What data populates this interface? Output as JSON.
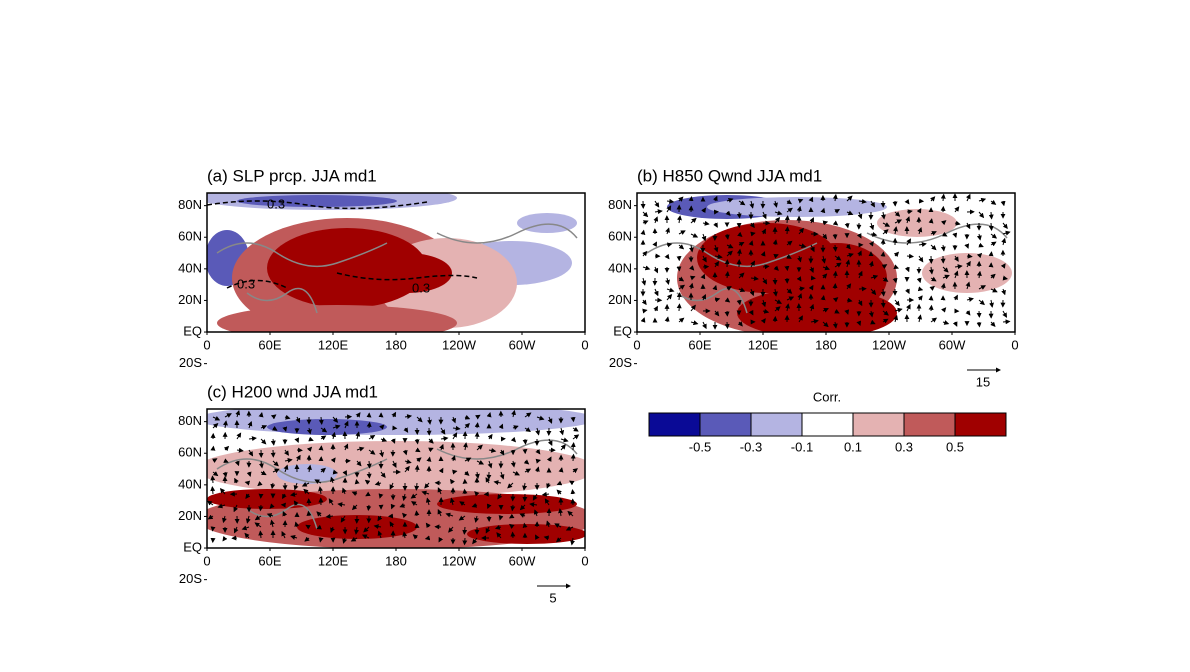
{
  "panels": [
    {
      "title": "(a) SLP prcp. JJA md1",
      "contour_labels": [
        "0.3",
        "0.3",
        "0.3"
      ]
    },
    {
      "title": "(b) H850 Qwnd JJA md1",
      "vector_ref": "15"
    },
    {
      "title": "(c) H200 wnd JJA md1",
      "vector_ref": "5"
    }
  ],
  "lat_labels": [
    "80N",
    "60N",
    "40N",
    "20N",
    "EQ",
    "20S"
  ],
  "lon_labels": [
    "0",
    "60E",
    "120E",
    "180",
    "120W",
    "60W",
    "0"
  ],
  "colorbar": {
    "title": "Corr.",
    "labels": [
      "-0.5",
      "-0.3",
      "-0.1",
      "0.1",
      "0.3",
      "0.5"
    ],
    "colors": [
      "#0a0a96",
      "#5a5ab8",
      "#b4b4e2",
      "#ffffff",
      "#e4b2b2",
      "#c05a5a",
      "#a00000"
    ]
  }
}
